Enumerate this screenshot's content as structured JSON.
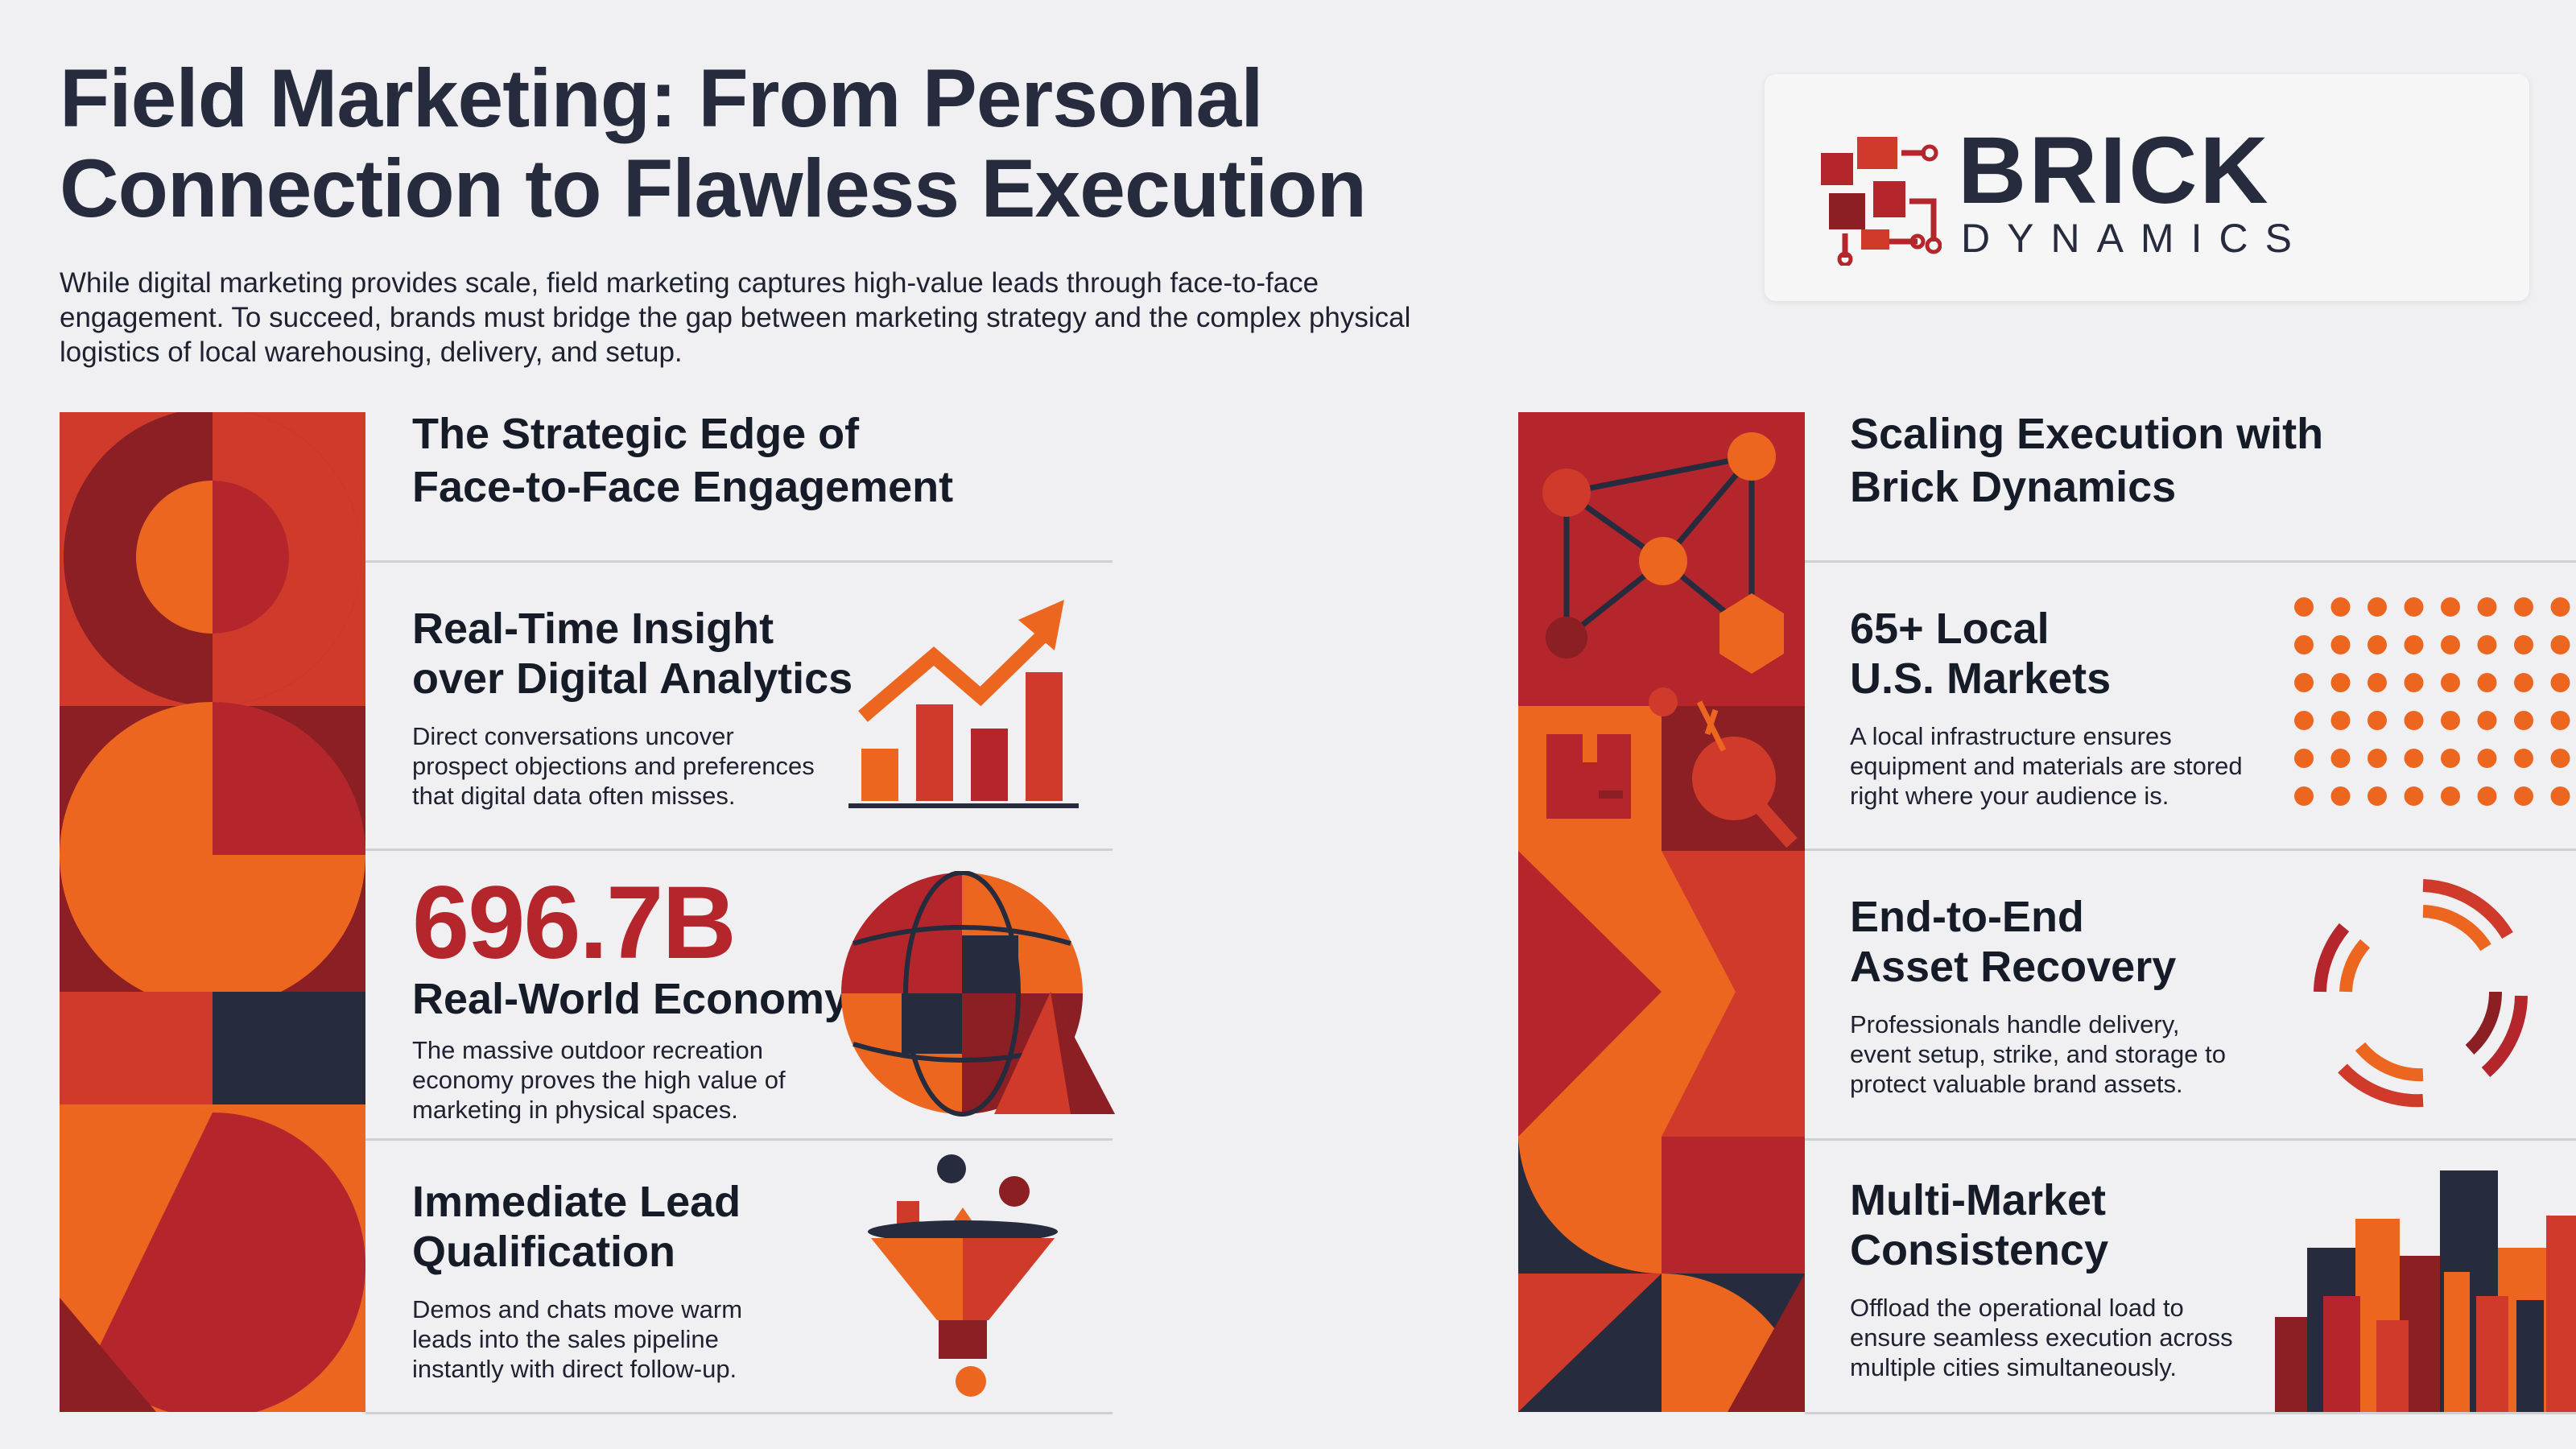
{
  "header": {
    "title_line1": "Field Marketing: From Personal",
    "title_line2": "Connection to Flawless Execution",
    "intro_line1": "While digital marketing provides scale, field marketing captures high-value leads through face-to-face",
    "intro_line2": "engagement. To succeed, brands must bridge the gap between marketing strategy and the complex physical",
    "intro_line3": "logistics of local warehousing, delivery, and setup."
  },
  "logo": {
    "name": "BRICK",
    "sub": "DYNAMICS",
    "icon": "circuit-brick-icon"
  },
  "colors": {
    "red": "#b4262c",
    "dark_red": "#8b1f24",
    "orange": "#ec6620",
    "mid_red": "#cf3a2a",
    "navy": "#262b3d"
  },
  "left": {
    "title_line1": "The Strategic Edge of",
    "title_line2": "Face-to-Face Engagement",
    "cards": [
      {
        "title_line1": "Real-Time Insight",
        "title_line2": "over Digital Analytics",
        "body_line1": "Direct conversations uncover",
        "body_line2": "prospect objections and preferences",
        "body_line3": "that digital data often misses.",
        "icon": "rising-bar-chart-icon"
      },
      {
        "stat": "696.7B",
        "title_line1": "Real-World Economy",
        "body_line1": "The massive outdoor recreation",
        "body_line2": "economy proves the high value of",
        "body_line3": "marketing in physical spaces.",
        "icon": "globe-mountain-icon"
      },
      {
        "title_line1": "Immediate Lead",
        "title_line2": "Qualification",
        "body_line1": "Demos and chats move warm",
        "body_line2": "leads into the sales pipeline",
        "body_line3": "instantly with direct follow-up.",
        "icon": "funnel-icon"
      }
    ]
  },
  "right": {
    "title_line1": "Scaling Execution with",
    "title_line2": "Brick Dynamics",
    "cards": [
      {
        "title_line1": "65+ Local",
        "title_line2": "U.S. Markets",
        "body_line1": "A local infrastructure ensures",
        "body_line2": "equipment and materials are stored",
        "body_line3": "right where your audience is.",
        "icon": "dot-grid-icon"
      },
      {
        "title_line1": "End-to-End",
        "title_line2": "Asset Recovery",
        "body_line1": "Professionals handle delivery,",
        "body_line2": "event setup, strike, and storage to",
        "body_line3": "protect valuable brand assets.",
        "icon": "recovery-arcs-icon"
      },
      {
        "title_line1": "Multi-Market",
        "title_line2": "Consistency",
        "body_line1": "Offload the operational load to",
        "body_line2": "ensure seamless execution across",
        "body_line3": "multiple cities simultaneously.",
        "icon": "skyline-bars-icon"
      }
    ]
  }
}
